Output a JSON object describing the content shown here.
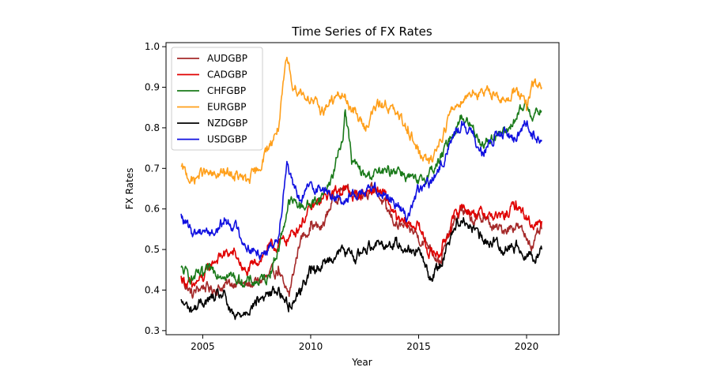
{
  "chart_data": {
    "type": "line",
    "title": "Time Series of FX Rates",
    "xlabel": "Year",
    "ylabel": "FX Rates",
    "xlim": [
      2003.3,
      2021.5
    ],
    "ylim": [
      0.29,
      1.01
    ],
    "xticks": [
      2005,
      2010,
      2015,
      2020
    ],
    "yticks": [
      0.3,
      0.4,
      0.5,
      0.6,
      0.7,
      0.8,
      0.9,
      1.0
    ],
    "ytick_labels": [
      "0.3",
      "0.4",
      "0.5",
      "0.6",
      "0.7",
      "0.8",
      "0.9",
      "1.0"
    ],
    "legend_position": "upper-left",
    "grid": false,
    "series": [
      {
        "name": "AUDGBP",
        "color": "#a52a2a",
        "x": [
          2004.0,
          2004.5,
          2005.0,
          2005.5,
          2006.0,
          2006.5,
          2007.0,
          2007.5,
          2008.0,
          2008.5,
          2008.8,
          2009.0,
          2009.5,
          2010.0,
          2010.5,
          2011.0,
          2011.5,
          2012.0,
          2012.5,
          2013.0,
          2013.5,
          2014.0,
          2014.5,
          2014.9,
          2015.0,
          2015.5,
          2016.0,
          2016.5,
          2017.0,
          2017.5,
          2018.0,
          2018.5,
          2019.0,
          2019.5,
          2020.0,
          2020.3,
          2020.7
        ],
        "y": [
          0.43,
          0.39,
          0.41,
          0.4,
          0.41,
          0.42,
          0.41,
          0.42,
          0.43,
          0.45,
          0.4,
          0.39,
          0.52,
          0.56,
          0.55,
          0.62,
          0.65,
          0.64,
          0.64,
          0.65,
          0.6,
          0.56,
          0.55,
          0.54,
          0.53,
          0.51,
          0.47,
          0.55,
          0.6,
          0.57,
          0.58,
          0.55,
          0.55,
          0.56,
          0.53,
          0.51,
          0.55
        ]
      },
      {
        "name": "CADGBP",
        "color": "#e00000",
        "x": [
          2004.0,
          2004.5,
          2005.0,
          2005.5,
          2006.0,
          2006.5,
          2007.0,
          2007.5,
          2008.0,
          2008.5,
          2009.0,
          2009.5,
          2010.0,
          2010.5,
          2011.0,
          2011.5,
          2012.0,
          2012.5,
          2013.0,
          2013.5,
          2014.0,
          2014.5,
          2015.0,
          2015.5,
          2016.0,
          2016.5,
          2017.0,
          2017.5,
          2018.0,
          2018.5,
          2019.0,
          2019.5,
          2020.0,
          2020.3,
          2020.7
        ],
        "y": [
          0.43,
          0.41,
          0.43,
          0.47,
          0.49,
          0.49,
          0.44,
          0.47,
          0.5,
          0.51,
          0.53,
          0.56,
          0.6,
          0.62,
          0.64,
          0.65,
          0.63,
          0.64,
          0.65,
          0.63,
          0.57,
          0.56,
          0.56,
          0.49,
          0.49,
          0.56,
          0.61,
          0.59,
          0.59,
          0.58,
          0.58,
          0.61,
          0.58,
          0.56,
          0.57
        ]
      },
      {
        "name": "CHFGBP",
        "color": "#1a7a1a",
        "x": [
          2004.0,
          2004.5,
          2005.0,
          2005.5,
          2006.0,
          2006.5,
          2007.0,
          2007.5,
          2008.0,
          2008.5,
          2009.0,
          2009.5,
          2010.0,
          2010.5,
          2011.0,
          2011.5,
          2011.6,
          2011.9,
          2012.5,
          2013.0,
          2013.5,
          2014.0,
          2014.5,
          2015.0,
          2015.5,
          2016.0,
          2016.5,
          2017.0,
          2017.5,
          2018.0,
          2018.5,
          2019.0,
          2019.5,
          2020.0,
          2020.3,
          2020.7
        ],
        "y": [
          0.45,
          0.43,
          0.44,
          0.45,
          0.44,
          0.43,
          0.42,
          0.42,
          0.43,
          0.5,
          0.62,
          0.61,
          0.61,
          0.63,
          0.68,
          0.78,
          0.85,
          0.72,
          0.68,
          0.69,
          0.69,
          0.7,
          0.68,
          0.66,
          0.69,
          0.72,
          0.78,
          0.83,
          0.8,
          0.76,
          0.78,
          0.79,
          0.82,
          0.86,
          0.83,
          0.84
        ]
      },
      {
        "name": "EURGBP",
        "color": "#ff9f1a",
        "x": [
          2004.0,
          2004.5,
          2005.0,
          2005.5,
          2006.0,
          2006.5,
          2007.0,
          2007.5,
          2008.0,
          2008.5,
          2008.9,
          2009.2,
          2009.5,
          2010.0,
          2010.5,
          2011.0,
          2011.5,
          2012.0,
          2012.5,
          2013.0,
          2013.5,
          2014.0,
          2014.5,
          2015.0,
          2015.5,
          2016.0,
          2016.5,
          2017.0,
          2017.5,
          2018.0,
          2018.5,
          2019.0,
          2019.5,
          2020.0,
          2020.3,
          2020.7
        ],
        "y": [
          0.7,
          0.67,
          0.69,
          0.68,
          0.69,
          0.68,
          0.67,
          0.69,
          0.75,
          0.8,
          0.97,
          0.9,
          0.89,
          0.87,
          0.84,
          0.87,
          0.88,
          0.84,
          0.8,
          0.85,
          0.86,
          0.83,
          0.8,
          0.74,
          0.71,
          0.77,
          0.84,
          0.87,
          0.89,
          0.88,
          0.89,
          0.86,
          0.9,
          0.85,
          0.91,
          0.9
        ]
      },
      {
        "name": "NZDGBP",
        "color": "#000000",
        "x": [
          2004.0,
          2004.5,
          2005.0,
          2005.5,
          2006.0,
          2006.3,
          2006.5,
          2007.0,
          2007.5,
          2008.0,
          2008.5,
          2009.0,
          2009.5,
          2010.0,
          2010.5,
          2011.0,
          2011.5,
          2012.0,
          2012.5,
          2013.0,
          2013.5,
          2014.0,
          2014.5,
          2015.0,
          2015.5,
          2016.0,
          2016.5,
          2017.0,
          2017.5,
          2018.0,
          2018.5,
          2019.0,
          2019.5,
          2020.0,
          2020.3,
          2020.7
        ],
        "y": [
          0.37,
          0.35,
          0.37,
          0.38,
          0.39,
          0.34,
          0.33,
          0.35,
          0.37,
          0.39,
          0.4,
          0.36,
          0.4,
          0.45,
          0.46,
          0.48,
          0.5,
          0.48,
          0.5,
          0.52,
          0.51,
          0.52,
          0.5,
          0.5,
          0.43,
          0.46,
          0.54,
          0.58,
          0.55,
          0.52,
          0.52,
          0.5,
          0.51,
          0.49,
          0.48,
          0.5
        ]
      },
      {
        "name": "USDGBP",
        "color": "#1010e0",
        "x": [
          2004.0,
          2004.5,
          2005.0,
          2005.5,
          2006.0,
          2006.5,
          2007.0,
          2007.5,
          2008.0,
          2008.5,
          2008.9,
          2009.2,
          2009.5,
          2010.0,
          2010.5,
          2011.0,
          2011.5,
          2012.0,
          2012.5,
          2013.0,
          2013.5,
          2014.0,
          2014.5,
          2015.0,
          2015.5,
          2016.0,
          2016.5,
          2017.0,
          2017.5,
          2018.0,
          2018.5,
          2019.0,
          2019.5,
          2020.0,
          2020.3,
          2020.7
        ],
        "y": [
          0.58,
          0.54,
          0.55,
          0.54,
          0.57,
          0.56,
          0.51,
          0.49,
          0.5,
          0.53,
          0.72,
          0.65,
          0.62,
          0.66,
          0.65,
          0.63,
          0.62,
          0.64,
          0.64,
          0.65,
          0.64,
          0.61,
          0.58,
          0.65,
          0.66,
          0.7,
          0.77,
          0.81,
          0.78,
          0.74,
          0.77,
          0.79,
          0.77,
          0.82,
          0.78,
          0.77
        ]
      }
    ]
  }
}
